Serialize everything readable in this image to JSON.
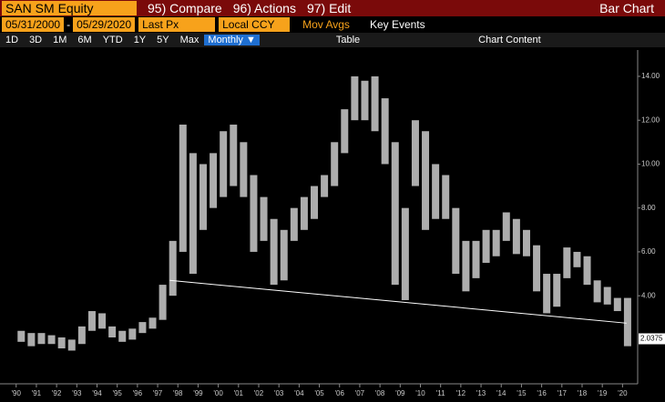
{
  "toolbar": {
    "ticker": "SAN SM Equity",
    "compare": "95) Compare",
    "actions": "96) Actions",
    "edit": "97) Edit",
    "view": "Bar Chart",
    "start_date": "05/31/2000",
    "dash": "-",
    "end_date": "05/29/2020",
    "field": "Last Px",
    "currency": "Local CCY",
    "mov_avgs": "Mov Avgs",
    "key_events": "Key Events",
    "periods": [
      "1D",
      "3D",
      "1M",
      "6M",
      "YTD",
      "1Y",
      "5Y",
      "Max"
    ],
    "frequency": "Monthly ▼",
    "table": "Table",
    "chart_content": "Chart Content"
  },
  "chart_data": {
    "type": "bar",
    "x": [
      1990,
      1990.5,
      1991,
      1991.5,
      1992,
      1992.5,
      1993,
      1993.5,
      1994,
      1994.5,
      1995,
      1995.5,
      1996,
      1996.5,
      1997,
      1997.5,
      1998,
      1998.5,
      1999,
      1999.5,
      2000,
      2000.5,
      2001,
      2001.5,
      2002,
      2002.5,
      2003,
      2003.5,
      2004,
      2004.5,
      2005,
      2005.5,
      2006,
      2006.5,
      2007,
      2007.5,
      2008,
      2008.5,
      2009,
      2009.5,
      2010,
      2010.5,
      2011,
      2011.5,
      2012,
      2012.5,
      2013,
      2013.5,
      2014,
      2014.5,
      2015,
      2015.5,
      2016,
      2016.5,
      2017,
      2017.5,
      2018,
      2018.5,
      2019,
      2019.5,
      2020
    ],
    "low": [
      1.9,
      1.7,
      1.8,
      1.8,
      1.6,
      1.5,
      1.8,
      2.4,
      2.5,
      2.1,
      1.9,
      2.0,
      2.3,
      2.5,
      2.9,
      4.0,
      6.0,
      5.0,
      7.0,
      8.0,
      8.5,
      9.0,
      8.5,
      6.0,
      6.5,
      4.5,
      4.7,
      6.5,
      7.0,
      7.5,
      8.5,
      9.0,
      10.5,
      12.0,
      12.0,
      11.5,
      10.0,
      4.5,
      3.8,
      9.0,
      7.0,
      7.5,
      7.5,
      5.0,
      4.2,
      4.8,
      5.5,
      5.8,
      6.5,
      5.9,
      5.8,
      4.2,
      3.2,
      3.5,
      4.8,
      5.3,
      4.5,
      3.7,
      3.6,
      3.3,
      1.7
    ],
    "high": [
      2.4,
      2.3,
      2.3,
      2.2,
      2.1,
      2.0,
      2.6,
      3.3,
      3.2,
      2.6,
      2.4,
      2.5,
      2.8,
      3.0,
      4.5,
      6.5,
      11.8,
      10.5,
      10.0,
      10.5,
      11.5,
      11.8,
      11.0,
      9.5,
      8.5,
      7.5,
      7.0,
      8.0,
      8.5,
      9.0,
      9.5,
      11.0,
      12.5,
      14.0,
      13.8,
      14.0,
      13.0,
      11.0,
      8.0,
      12.0,
      11.5,
      10.0,
      9.5,
      8.0,
      6.5,
      6.5,
      7.0,
      7.0,
      7.8,
      7.5,
      7.0,
      6.3,
      5.0,
      5.0,
      6.2,
      6.0,
      5.8,
      4.7,
      4.4,
      3.9,
      3.9
    ],
    "trendline": {
      "x": [
        1997.6,
        2020.2
      ],
      "values": [
        4.7,
        2.75
      ]
    },
    "last_price": {
      "value": 2.0375,
      "label": "2.0375"
    },
    "xlim": [
      1989.2,
      2020.75
    ],
    "ylim": [
      0.4,
      15.2
    ],
    "xticks": [
      {
        "value": 1990,
        "label": "'90"
      },
      {
        "value": 1991,
        "label": "'91"
      },
      {
        "value": 1992,
        "label": "'92"
      },
      {
        "value": 1993,
        "label": "'93"
      },
      {
        "value": 1994,
        "label": "'94"
      },
      {
        "value": 1995,
        "label": "'95"
      },
      {
        "value": 1996,
        "label": "'96"
      },
      {
        "value": 1997,
        "label": "'97"
      },
      {
        "value": 1998,
        "label": "'98"
      },
      {
        "value": 1999,
        "label": "'99"
      },
      {
        "value": 2000,
        "label": "'00"
      },
      {
        "value": 2001,
        "label": "'01"
      },
      {
        "value": 2002,
        "label": "'02"
      },
      {
        "value": 2003,
        "label": "'03"
      },
      {
        "value": 2004,
        "label": "'04"
      },
      {
        "value": 2005,
        "label": "'05"
      },
      {
        "value": 2006,
        "label": "'06"
      },
      {
        "value": 2007,
        "label": "'07"
      },
      {
        "value": 2008,
        "label": "'08"
      },
      {
        "value": 2009,
        "label": "'09"
      },
      {
        "value": 2010,
        "label": "'10"
      },
      {
        "value": 2011,
        "label": "'11"
      },
      {
        "value": 2012,
        "label": "'12"
      },
      {
        "value": 2013,
        "label": "'13"
      },
      {
        "value": 2014,
        "label": "'14"
      },
      {
        "value": 2015,
        "label": "'15"
      },
      {
        "value": 2016,
        "label": "'16"
      },
      {
        "value": 2017,
        "label": "'17"
      },
      {
        "value": 2018,
        "label": "'18"
      },
      {
        "value": 2019,
        "label": "'19"
      },
      {
        "value": 2020,
        "label": "'20"
      }
    ],
    "yticks": [
      {
        "value": 4,
        "label": "4.00"
      },
      {
        "value": 6,
        "label": "6.00"
      },
      {
        "value": 8,
        "label": "8.00"
      },
      {
        "value": 10,
        "label": "10.00"
      },
      {
        "value": 12,
        "label": "12.00"
      },
      {
        "value": 14,
        "label": "14.00"
      }
    ],
    "color": "#d8d8d8"
  }
}
